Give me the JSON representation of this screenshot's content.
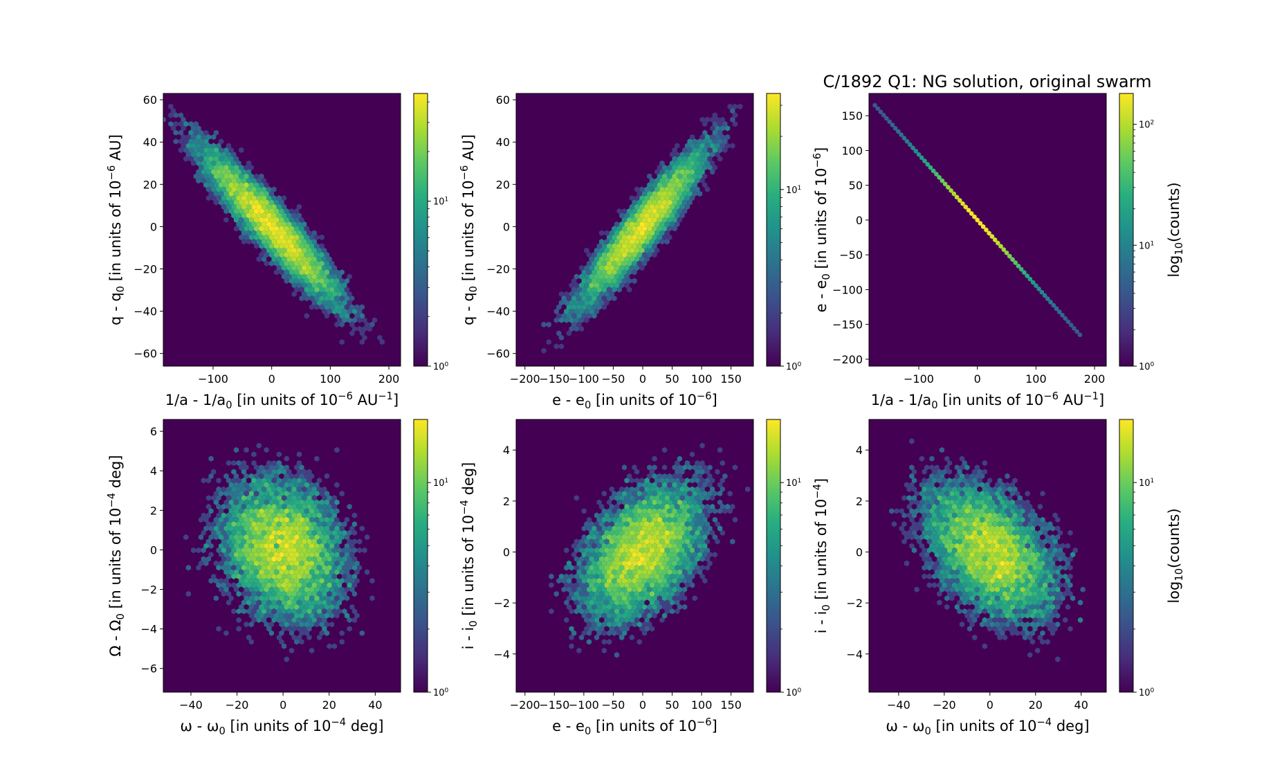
{
  "figure": {
    "title": "C/1892 Q1:  NG solution, original swarm"
  },
  "chart_data": [
    {
      "type": "heatmap",
      "subtype": "hexbin",
      "xlabel": "1/a - 1/a0 [in units of 10^-6 AU^-1]",
      "ylabel": "q - q0 [in units of 10^-6 AU]",
      "xlim": [
        -185,
        220
      ],
      "ylim": [
        -66,
        63
      ],
      "xticks": [
        -100,
        0,
        100,
        200
      ],
      "yticks": [
        -60,
        -40,
        -20,
        0,
        20,
        40,
        60
      ],
      "xtick_labels": [
        "−100",
        "0",
        "100",
        "200"
      ],
      "ytick_labels": [
        "−60",
        "−40",
        "−20",
        "0",
        "20",
        "40",
        "60"
      ],
      "distribution": {
        "mean": [
          0,
          0
        ],
        "sd": [
          62,
          19
        ],
        "corr": -0.93,
        "n": 9000
      },
      "colorbar": {
        "scale": "log",
        "min": 1,
        "max": 45,
        "ticks": [
          1,
          10
        ],
        "tick_labels": [
          "10^0",
          "10^1"
        ],
        "label": ""
      }
    },
    {
      "type": "heatmap",
      "subtype": "hexbin",
      "xlabel": "e - e0 [in units of 10^-6]",
      "ylabel": "q - q0 [in units of 10^-6 AU]",
      "xlim": [
        -215,
        188
      ],
      "ylim": [
        -66,
        63
      ],
      "xticks": [
        -200,
        -150,
        -100,
        -50,
        0,
        50,
        100,
        150
      ],
      "yticks": [
        -60,
        -40,
        -20,
        0,
        20,
        40,
        60
      ],
      "xtick_labels": [
        "−200",
        "−150",
        "−100",
        "−50",
        "0",
        "50",
        "100",
        "150"
      ],
      "ytick_labels": [
        "−60",
        "−40",
        "−20",
        "0",
        "20",
        "40",
        "60"
      ],
      "distribution": {
        "mean": [
          0,
          0
        ],
        "sd": [
          55,
          19
        ],
        "corr": 0.93,
        "n": 9000
      },
      "colorbar": {
        "scale": "log",
        "min": 1,
        "max": 35,
        "ticks": [
          1,
          10
        ],
        "tick_labels": [
          "10^0",
          "10^1"
        ],
        "label": ""
      }
    },
    {
      "type": "heatmap",
      "subtype": "hexbin",
      "xlabel": "1/a - 1/a0 [in units of 10^-6 AU^-1]",
      "ylabel": "e - e0 [in units of 10^-6]",
      "xlim": [
        -185,
        220
      ],
      "ylim": [
        -210,
        182
      ],
      "xticks": [
        -100,
        0,
        100,
        200
      ],
      "yticks": [
        -200,
        -150,
        -100,
        -50,
        0,
        50,
        100,
        150
      ],
      "xtick_labels": [
        "−100",
        "0",
        "100",
        "200"
      ],
      "ytick_labels": [
        "−200",
        "−150",
        "−100",
        "−50",
        "0",
        "50",
        "100",
        "150"
      ],
      "line": {
        "x": [
          -175,
          175
        ],
        "y": [
          165,
          -165
        ]
      },
      "colorbar": {
        "scale": "log",
        "min": 1,
        "max": 180,
        "ticks": [
          1,
          10,
          100
        ],
        "tick_labels": [
          "10^0",
          "10^1",
          "10^2"
        ],
        "label": "log10(counts)"
      }
    },
    {
      "type": "heatmap",
      "subtype": "hexbin",
      "xlabel": "ω - ω0 [in units of 10^-4 deg]",
      "ylabel": "Ω - Ω0 [in units of 10^-4 deg]",
      "xlim": [
        -52,
        51
      ],
      "ylim": [
        -7.2,
        6.6
      ],
      "xticks": [
        -40,
        -20,
        0,
        20,
        40
      ],
      "yticks": [
        -6,
        -4,
        -2,
        0,
        2,
        4,
        6
      ],
      "xtick_labels": [
        "−40",
        "−20",
        "0",
        "20",
        "40"
      ],
      "ytick_labels": [
        "−6",
        "−4",
        "−2",
        "0",
        "2",
        "4",
        "6"
      ],
      "distribution": {
        "mean": [
          0,
          0
        ],
        "sd": [
          14,
          1.9
        ],
        "corr": -0.2,
        "n": 9000
      },
      "colorbar": {
        "scale": "log",
        "min": 1,
        "max": 20,
        "ticks": [
          1,
          10
        ],
        "tick_labels": [
          "10^0",
          "10^1"
        ],
        "label": ""
      }
    },
    {
      "type": "heatmap",
      "subtype": "hexbin",
      "xlabel": "e - e0 [in units of 10^-6]",
      "ylabel": "i - i0 [in units of 10^-4 deg]",
      "xlim": [
        -215,
        188
      ],
      "ylim": [
        -5.5,
        5.2
      ],
      "xticks": [
        -200,
        -150,
        -100,
        -50,
        0,
        50,
        100,
        150
      ],
      "yticks": [
        -4,
        -2,
        0,
        2,
        4
      ],
      "xtick_labels": [
        "−200",
        "−150",
        "−100",
        "−50",
        "0",
        "50",
        "100",
        "150"
      ],
      "ytick_labels": [
        "−4",
        "−2",
        "0",
        "2",
        "4"
      ],
      "distribution": {
        "mean": [
          0,
          0
        ],
        "sd": [
          55,
          1.4
        ],
        "corr": 0.45,
        "n": 9000
      },
      "colorbar": {
        "scale": "log",
        "min": 1,
        "max": 20,
        "ticks": [
          1,
          10
        ],
        "tick_labels": [
          "10^0",
          "10^1"
        ],
        "label": ""
      }
    },
    {
      "type": "heatmap",
      "subtype": "hexbin",
      "xlabel": "ω - ω0 [in units of 10^-4 deg]",
      "ylabel": "i - i0 [in units of 10^-4]",
      "xlim": [
        -53,
        51
      ],
      "ylim": [
        -5.5,
        5.2
      ],
      "xticks": [
        -40,
        -20,
        0,
        20,
        40
      ],
      "yticks": [
        -4,
        -2,
        0,
        2,
        4
      ],
      "xtick_labels": [
        "−40",
        "−20",
        "0",
        "20",
        "40"
      ],
      "ytick_labels": [
        "−4",
        "−2",
        "0",
        "2",
        "4"
      ],
      "distribution": {
        "mean": [
          0,
          0
        ],
        "sd": [
          15,
          1.4
        ],
        "corr": -0.45,
        "n": 9000
      },
      "colorbar": {
        "scale": "log",
        "min": 1,
        "max": 20,
        "ticks": [
          1,
          10
        ],
        "tick_labels": [
          "10^0",
          "10^1"
        ],
        "label": "log10(counts)"
      }
    }
  ]
}
